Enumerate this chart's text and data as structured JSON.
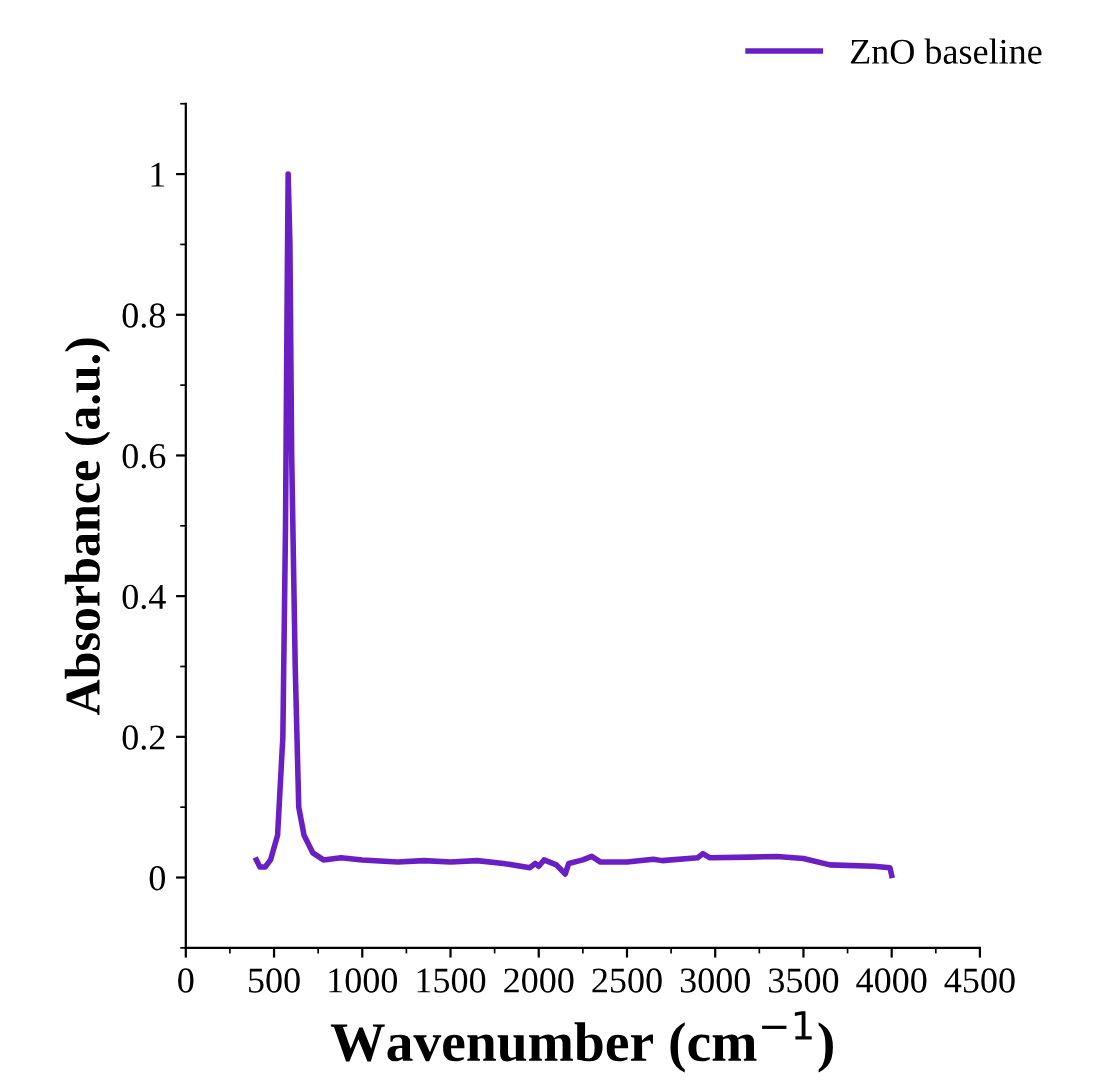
{
  "chart_data": {
    "type": "line",
    "xlabel": "Wavenumber (cm$^{−1}$)",
    "ylabel": "Absorbance (a.u.)",
    "x": [
      400,
      420,
      450,
      480,
      520,
      550,
      565,
      575,
      580,
      590,
      600,
      620,
      640,
      670,
      720,
      780,
      880,
      1000,
      1200,
      1350,
      1500,
      1650,
      1800,
      1950,
      1980,
      2000,
      2030,
      2100,
      2150,
      2170,
      2250,
      2300,
      2350,
      2500,
      2650,
      2700,
      2900,
      2930,
      2970,
      3200,
      3350,
      3500,
      3650,
      3900,
      3990,
      4000
    ],
    "series": [
      {
        "name": "ZnO baseline",
        "color": "#6a1fc4",
        "values": [
          0.025,
          0.015,
          0.015,
          0.025,
          0.06,
          0.2,
          0.5,
          0.85,
          1.0,
          0.9,
          0.6,
          0.3,
          0.1,
          0.06,
          0.035,
          0.025,
          0.028,
          0.025,
          0.022,
          0.024,
          0.022,
          0.024,
          0.02,
          0.014,
          0.02,
          0.016,
          0.025,
          0.018,
          0.005,
          0.02,
          0.025,
          0.03,
          0.022,
          0.022,
          0.026,
          0.024,
          0.028,
          0.034,
          0.028,
          0.029,
          0.03,
          0.027,
          0.018,
          0.016,
          0.014,
          0.003
        ]
      }
    ],
    "xlim": [
      0,
      4500
    ],
    "xticks": [
      0,
      500,
      1000,
      1500,
      2000,
      2500,
      3000,
      3500,
      4000,
      4500
    ],
    "ylim": [
      -0.1,
      1.1
    ],
    "yticks": [
      0,
      {
        "value": 0.2,
        "label": "0.2"
      },
      {
        "value": 0.4,
        "label": "0.4"
      },
      {
        "value": 0.6,
        "label": "0.6"
      },
      {
        "value": 0.8,
        "label": "0.8"
      },
      1
    ],
    "grid": false,
    "legend": "top right",
    "marker": "none",
    "line_style": "solid"
  }
}
